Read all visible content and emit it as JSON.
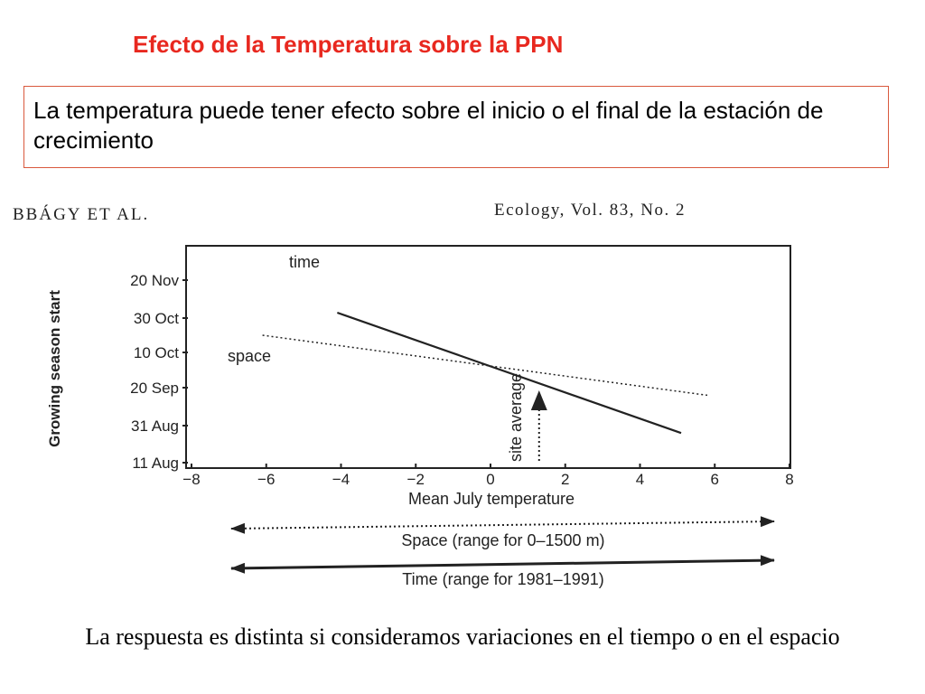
{
  "slide": {
    "title": "Efecto de la Temperatura sobre la PPN",
    "box_text": "La temperatura puede tener efecto sobre el inicio o el final de la estación de crecimiento",
    "footer_text": "La respuesta es distinta si consideramos variaciones en el tiempo o en el espacio",
    "title_color": "#e8281f",
    "box_border_color": "#d9593d"
  },
  "figure": {
    "header_left": "BBÁGY ET AL.",
    "header_right": "Ecology, Vol. 83, No. 2",
    "arrow_space_label": "Space (range for 0–1500 m)",
    "arrow_time_label": "Time (range for 1981–1991)"
  },
  "chart_data": {
    "type": "line",
    "xlabel": "Mean July temperature",
    "ylabel": "Growing season start",
    "xlim": [
      -8,
      8
    ],
    "x_ticks": [
      -8,
      -6,
      -4,
      -2,
      0,
      2,
      4,
      6,
      8
    ],
    "x_tick_labels": [
      "−8",
      "−6",
      "−4",
      "−2",
      "0",
      "2",
      "4",
      "6",
      "8"
    ],
    "y_ticks": [
      "11 Aug",
      "31 Aug",
      "20 Sep",
      "10 Oct",
      "30 Oct",
      "20 Nov"
    ],
    "series": [
      {
        "name": "time",
        "style": "solid",
        "x": [
          -4.1,
          5.1
        ],
        "y": [
          "2 Nov",
          "27 Aug"
        ]
      },
      {
        "name": "space",
        "style": "dotted",
        "x": [
          -6.1,
          5.8
        ],
        "y": [
          "20 Oct",
          "16 Sep"
        ]
      }
    ],
    "annotations": [
      {
        "text": "site average",
        "x": 1.3,
        "arrow": "up",
        "style": "dotted"
      }
    ]
  }
}
